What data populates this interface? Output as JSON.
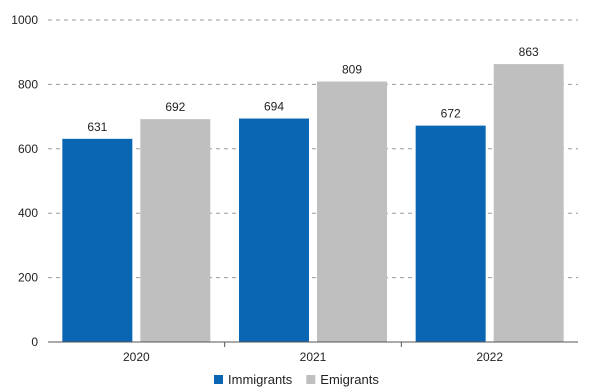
{
  "chart_data": {
    "type": "bar",
    "categories": [
      "2020",
      "2021",
      "2022"
    ],
    "series": [
      {
        "name": "Immigrants",
        "values": [
          631,
          694,
          672
        ],
        "color": "#0a66b2"
      },
      {
        "name": "Emigrants",
        "values": [
          692,
          809,
          863
        ],
        "color": "#bfbfbf"
      }
    ],
    "yticks": [
      0,
      200,
      400,
      600,
      800,
      1000
    ],
    "ylim": [
      0,
      1000
    ],
    "grid": true,
    "grid_style": "dashed",
    "legend_position": "bottom-center",
    "title": "",
    "xlabel": "",
    "ylabel": ""
  }
}
